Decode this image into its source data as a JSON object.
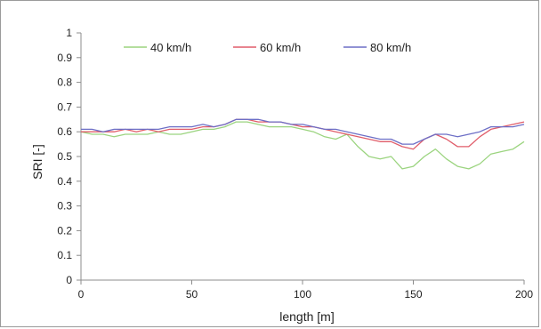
{
  "chart_data": {
    "type": "line",
    "title": "",
    "xlabel": "length  [m]",
    "ylabel": "SRI [-]",
    "xlim": [
      0,
      200
    ],
    "ylim": [
      0,
      1
    ],
    "x_ticks": [
      0,
      50,
      100,
      150,
      200
    ],
    "y_ticks": [
      0,
      0.1,
      0.2,
      0.3,
      0.4,
      0.5,
      0.6,
      0.7,
      0.8,
      0.9,
      1
    ],
    "grid": false,
    "legend_position": "top",
    "x": [
      0,
      5,
      10,
      15,
      20,
      25,
      30,
      35,
      40,
      45,
      50,
      55,
      60,
      65,
      70,
      75,
      80,
      85,
      90,
      95,
      100,
      105,
      110,
      115,
      120,
      125,
      130,
      135,
      140,
      145,
      150,
      155,
      160,
      165,
      170,
      175,
      180,
      185,
      190,
      195,
      200
    ],
    "series": [
      {
        "name": "40 km/h",
        "color": "#9bd47f",
        "values": [
          0.6,
          0.59,
          0.59,
          0.58,
          0.59,
          0.59,
          0.59,
          0.6,
          0.59,
          0.59,
          0.6,
          0.61,
          0.61,
          0.62,
          0.64,
          0.64,
          0.63,
          0.62,
          0.62,
          0.62,
          0.61,
          0.6,
          0.58,
          0.57,
          0.59,
          0.54,
          0.5,
          0.49,
          0.5,
          0.45,
          0.46,
          0.5,
          0.53,
          0.49,
          0.46,
          0.45,
          0.47,
          0.51,
          0.52,
          0.53,
          0.56
        ]
      },
      {
        "name": "60 km/h",
        "color": "#e05d6a",
        "values": [
          0.6,
          0.6,
          0.6,
          0.6,
          0.61,
          0.6,
          0.61,
          0.6,
          0.61,
          0.61,
          0.61,
          0.62,
          0.62,
          0.63,
          0.65,
          0.65,
          0.64,
          0.64,
          0.64,
          0.63,
          0.62,
          0.62,
          0.61,
          0.6,
          0.59,
          0.58,
          0.57,
          0.56,
          0.56,
          0.54,
          0.53,
          0.57,
          0.59,
          0.57,
          0.54,
          0.54,
          0.58,
          0.61,
          0.62,
          0.63,
          0.64
        ]
      },
      {
        "name": "80 km/h",
        "color": "#6d6fc6",
        "values": [
          0.61,
          0.61,
          0.6,
          0.61,
          0.61,
          0.61,
          0.61,
          0.61,
          0.62,
          0.62,
          0.62,
          0.63,
          0.62,
          0.63,
          0.65,
          0.65,
          0.65,
          0.64,
          0.64,
          0.63,
          0.63,
          0.62,
          0.61,
          0.61,
          0.6,
          0.59,
          0.58,
          0.57,
          0.57,
          0.55,
          0.55,
          0.57,
          0.59,
          0.59,
          0.58,
          0.59,
          0.6,
          0.62,
          0.62,
          0.62,
          0.63
        ]
      }
    ]
  }
}
